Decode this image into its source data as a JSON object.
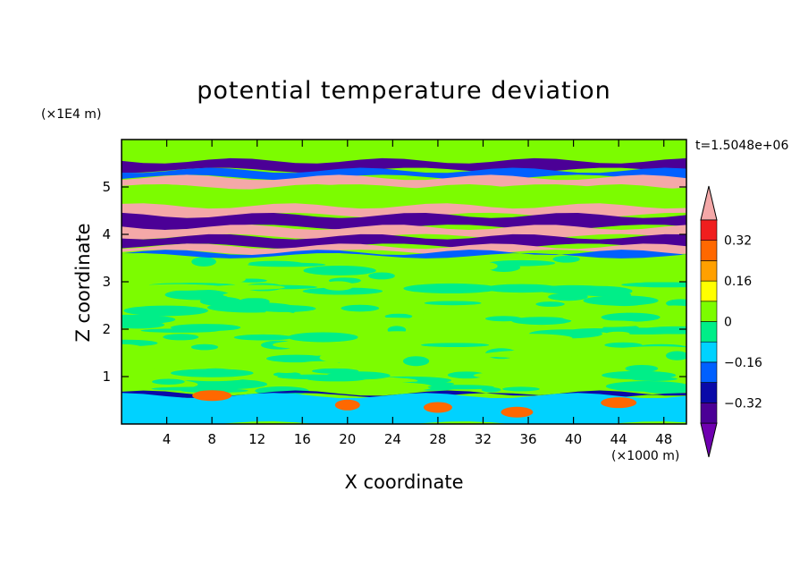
{
  "chart_data": {
    "type": "heatmap",
    "title": "potential temperature deviation",
    "xlabel": "X coordinate",
    "ylabel": "Z coordinate",
    "x_unit": "(×1000 m)",
    "y_unit": "(×1E4 m)",
    "time_label": "t=1.5048e+06",
    "xlim": [
      0,
      50
    ],
    "ylim": [
      0,
      6
    ],
    "x_ticks": [
      4,
      8,
      12,
      16,
      20,
      24,
      28,
      32,
      36,
      40,
      44,
      48
    ],
    "y_ticks": [
      1,
      2,
      3,
      4,
      5
    ],
    "colorbar": {
      "levels": [
        -0.48,
        -0.4,
        -0.32,
        -0.24,
        -0.16,
        -0.08,
        0,
        0.08,
        0.16,
        0.24,
        0.32,
        0.4,
        0.48
      ],
      "tick_labels": [
        "0.32",
        "0.16",
        "0",
        "−0.16",
        "−0.32"
      ],
      "tick_values": [
        0.32,
        0.16,
        0,
        -0.16,
        -0.32
      ],
      "colors": [
        "#6f00b0",
        "#4b0096",
        "#0a0aa8",
        "#0060ff",
        "#00d2ff",
        "#00ee88",
        "#7cfc00",
        "#ffff00",
        "#ffa000",
        "#ff6800",
        "#f01e1e",
        "#f4a8a8"
      ]
    },
    "bands": [
      {
        "z": [
          5.35,
          5.55
        ],
        "level": -0.36
      },
      {
        "z": [
          5.2,
          5.35
        ],
        "level": -0.2
      },
      {
        "z": [
          5.0,
          5.2
        ],
        "level": 0.44
      },
      {
        "z": [
          4.6,
          5.0
        ],
        "level": 0.04
      },
      {
        "z": [
          4.4,
          4.6
        ],
        "level": 0.44
      },
      {
        "z": [
          4.15,
          4.4
        ],
        "level": -0.4
      },
      {
        "z": [
          3.95,
          4.15
        ],
        "level": 0.44
      },
      {
        "z": [
          3.75,
          3.95
        ],
        "level": -0.4
      },
      {
        "z": [
          3.62,
          3.75
        ],
        "level": 0.44
      },
      {
        "z": [
          3.55,
          3.62
        ],
        "level": -0.2
      },
      {
        "z": [
          0.6,
          0.65
        ],
        "level": -0.3
      },
      {
        "z": [
          0.0,
          0.6
        ],
        "level": -0.1
      }
    ]
  }
}
